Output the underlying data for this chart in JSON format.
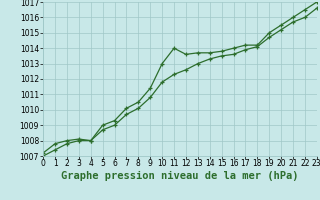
{
  "title": "Graphe pression niveau de la mer (hPa)",
  "background_color": "#c8e8e8",
  "grid_color": "#a0c8c8",
  "line_color": "#2d6e2d",
  "x_values": [
    0,
    1,
    2,
    3,
    4,
    5,
    6,
    7,
    8,
    9,
    10,
    11,
    12,
    13,
    14,
    15,
    16,
    17,
    18,
    19,
    20,
    21,
    22,
    23
  ],
  "series1": [
    1007.2,
    1007.8,
    1008.0,
    1008.1,
    1008.0,
    1009.0,
    1009.3,
    1010.1,
    1010.5,
    1011.4,
    1013.0,
    1014.0,
    1013.6,
    1013.7,
    1013.7,
    1013.8,
    1014.0,
    1014.2,
    1014.2,
    1015.0,
    1015.5,
    1016.0,
    1016.5,
    1017.0
  ],
  "series2": [
    1007.0,
    1007.4,
    1007.8,
    1008.0,
    1008.0,
    1008.7,
    1009.0,
    1009.7,
    1010.1,
    1010.8,
    1011.8,
    1012.3,
    1012.6,
    1013.0,
    1013.3,
    1013.5,
    1013.6,
    1013.9,
    1014.1,
    1014.7,
    1015.2,
    1015.7,
    1016.0,
    1016.6
  ],
  "ylim": [
    1007,
    1017
  ],
  "yticks": [
    1007,
    1008,
    1009,
    1010,
    1011,
    1012,
    1013,
    1014,
    1015,
    1016,
    1017
  ],
  "xticks": [
    0,
    1,
    2,
    3,
    4,
    5,
    6,
    7,
    8,
    9,
    10,
    11,
    12,
    13,
    14,
    15,
    16,
    17,
    18,
    19,
    20,
    21,
    22,
    23
  ],
  "title_fontsize": 7.5,
  "tick_fontsize": 5.5,
  "marker_size": 3.5,
  "linewidth": 0.9
}
